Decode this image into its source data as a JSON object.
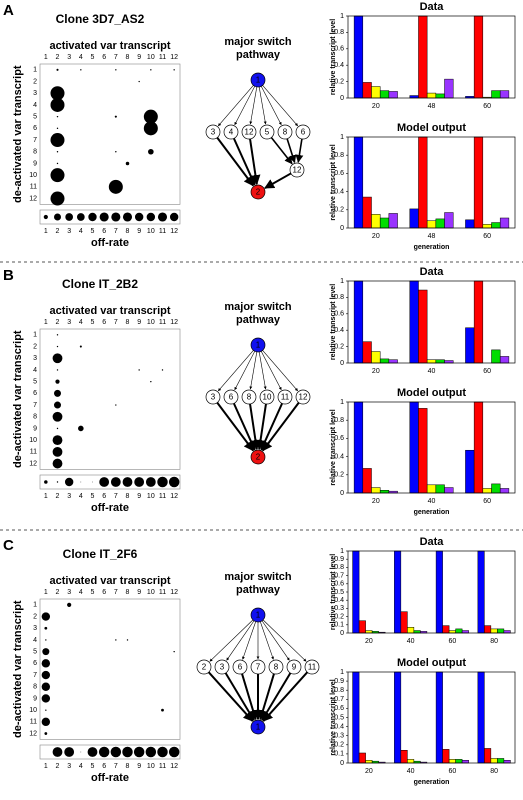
{
  "panels": [
    {
      "label": "A",
      "title": "Clone 3D7_AS2",
      "pathway": {
        "title_lines": [
          "major switch",
          "pathway"
        ],
        "source": "1",
        "intermediates": [
          "3",
          "4",
          "12",
          "5",
          "8",
          "6"
        ],
        "relay": [
          "12"
        ],
        "target": "2",
        "target_color": "#ee1111"
      }
    },
    {
      "label": "B",
      "title": "Clone IT_2B2",
      "pathway": {
        "title_lines": [
          "major switch",
          "pathway"
        ],
        "source": "1",
        "intermediates": [
          "3",
          "6",
          "8",
          "10",
          "11",
          "12"
        ],
        "target": "2",
        "target_color": "#ee1111"
      }
    },
    {
      "label": "C",
      "title": "Clone IT_2F6",
      "pathway": {
        "title_lines": [
          "major switch",
          "pathway"
        ],
        "source": "1",
        "intermediates": [
          "2",
          "3",
          "6",
          "7",
          "8",
          "9",
          "11"
        ],
        "target": "1",
        "target_color": "#1111ee"
      }
    }
  ],
  "chart_data": [
    {
      "type": "bubble-matrix",
      "title": "activated var transcript",
      "y_label": "de-activated var transcript",
      "categories": [
        "1",
        "2",
        "3",
        "4",
        "5",
        "6",
        "7",
        "8",
        "9",
        "10",
        "11",
        "12"
      ],
      "values": [
        [
          0,
          0.15,
          0,
          0.1,
          0,
          0,
          0.1,
          0,
          0,
          0.1,
          0,
          0.1
        ],
        [
          0,
          0,
          0,
          0,
          0,
          0,
          0,
          0,
          0.1,
          0,
          0,
          0
        ],
        [
          0,
          1,
          0,
          0,
          0,
          0,
          0,
          0,
          0,
          0,
          0,
          0
        ],
        [
          0,
          1,
          0,
          0,
          0,
          0,
          0,
          0,
          0,
          0,
          0,
          0
        ],
        [
          0,
          0.1,
          0,
          0,
          0,
          0,
          0.15,
          0,
          0,
          1,
          0,
          0
        ],
        [
          0,
          0.1,
          0,
          0,
          0,
          0,
          0,
          0,
          0,
          1,
          0,
          0
        ],
        [
          0,
          1,
          0,
          0,
          0,
          0,
          0,
          0,
          0,
          0,
          0,
          0
        ],
        [
          0,
          0.1,
          0,
          0,
          0,
          0,
          0.1,
          0,
          0,
          0.4,
          0,
          0
        ],
        [
          0,
          0.1,
          0,
          0,
          0,
          0,
          0,
          0.25,
          0,
          0,
          0,
          0
        ],
        [
          0,
          1,
          0,
          0,
          0,
          0,
          0,
          0,
          0,
          0,
          0,
          0
        ],
        [
          0,
          0,
          0,
          0,
          0,
          0,
          1,
          0,
          0,
          0,
          0,
          0
        ],
        [
          0,
          1,
          0,
          0,
          0,
          0,
          0,
          0,
          0,
          0,
          0,
          0
        ]
      ],
      "off_rate_label": "off-rate",
      "off_rate": [
        0.3,
        0.5,
        0.55,
        0.55,
        0.6,
        0.65,
        0.65,
        0.65,
        0.6,
        0.6,
        0.65,
        0.6
      ]
    },
    {
      "type": "bar",
      "title": "Data",
      "y_label": "relative transcript level",
      "categories": [
        "20",
        "48",
        "60"
      ],
      "series": [
        {
          "color": "#0000ff",
          "values": [
            1,
            0.03,
            0.02
          ]
        },
        {
          "color": "#ff0000",
          "values": [
            0.19,
            1,
            1
          ]
        },
        {
          "color": "#ffff00",
          "values": [
            0.14,
            0.06,
            0.01
          ]
        },
        {
          "color": "#00dd00",
          "values": [
            0.09,
            0.05,
            0.09
          ]
        },
        {
          "color": "#9933ff",
          "values": [
            0.08,
            0.23,
            0.09
          ]
        }
      ],
      "ylim": [
        0,
        1
      ],
      "yticks": [
        0,
        0.2,
        0.4,
        0.6,
        0.8,
        1
      ]
    },
    {
      "type": "bar",
      "title": "Model output",
      "y_label": "relative transcript level",
      "x_label": "generation",
      "categories": [
        "20",
        "48",
        "60"
      ],
      "series": [
        {
          "color": "#0000ff",
          "values": [
            1,
            0.21,
            0.09
          ]
        },
        {
          "color": "#ff0000",
          "values": [
            0.34,
            1,
            1
          ]
        },
        {
          "color": "#ffff00",
          "values": [
            0.15,
            0.08,
            0.04
          ]
        },
        {
          "color": "#00dd00",
          "values": [
            0.11,
            0.1,
            0.06
          ]
        },
        {
          "color": "#9933ff",
          "values": [
            0.16,
            0.17,
            0.11
          ]
        }
      ],
      "ylim": [
        0,
        1
      ],
      "yticks": [
        0,
        0.2,
        0.4,
        0.6,
        0.8,
        1
      ]
    },
    {
      "type": "bubble-matrix",
      "title": "activated var transcript",
      "y_label": "de-activated var transcript",
      "categories": [
        "1",
        "2",
        "3",
        "4",
        "5",
        "6",
        "7",
        "8",
        "9",
        "10",
        "11",
        "12"
      ],
      "values": [
        [
          0,
          0.1,
          0,
          0,
          0,
          0,
          0,
          0,
          0,
          0,
          0,
          0
        ],
        [
          0,
          0.1,
          0,
          0.15,
          0,
          0,
          0,
          0,
          0,
          0,
          0,
          0
        ],
        [
          0,
          0.7,
          0,
          0,
          0,
          0,
          0,
          0,
          0,
          0,
          0,
          0
        ],
        [
          0,
          0.1,
          0,
          0,
          0,
          0,
          0,
          0,
          0.1,
          0,
          0.1,
          0
        ],
        [
          0,
          0.3,
          0,
          0,
          0,
          0,
          0,
          0,
          0,
          0.1,
          0,
          0
        ],
        [
          0,
          0.5,
          0,
          0,
          0,
          0,
          0,
          0,
          0,
          0,
          0,
          0
        ],
        [
          0,
          0.5,
          0,
          0,
          0,
          0,
          0.1,
          0,
          0,
          0,
          0,
          0
        ],
        [
          0,
          0.7,
          0,
          0,
          0,
          0,
          0,
          0,
          0,
          0,
          0,
          0
        ],
        [
          0,
          0.1,
          0,
          0.4,
          0,
          0,
          0,
          0,
          0,
          0,
          0,
          0
        ],
        [
          0,
          0.7,
          0,
          0,
          0,
          0,
          0,
          0,
          0,
          0,
          0,
          0
        ],
        [
          0,
          0.7,
          0,
          0,
          0,
          0,
          0,
          0,
          0,
          0,
          0,
          0
        ],
        [
          0,
          0.7,
          0,
          0,
          0,
          0,
          0,
          0,
          0,
          0,
          0,
          0
        ]
      ],
      "off_rate_label": "off-rate",
      "off_rate": [
        0.25,
        0.1,
        0.6,
        0.05,
        0.05,
        0.7,
        0.7,
        0.7,
        0.7,
        0.7,
        0.75,
        0.75
      ]
    },
    {
      "type": "bar",
      "title": "Data",
      "y_label": "relative transcript level",
      "categories": [
        "20",
        "40",
        "60"
      ],
      "series": [
        {
          "color": "#0000ff",
          "values": [
            1,
            1,
            0.43
          ]
        },
        {
          "color": "#ff0000",
          "values": [
            0.26,
            0.89,
            1
          ]
        },
        {
          "color": "#ffff00",
          "values": [
            0.14,
            0.04,
            0
          ]
        },
        {
          "color": "#00dd00",
          "values": [
            0.05,
            0.04,
            0.16
          ]
        },
        {
          "color": "#9933ff",
          "values": [
            0.04,
            0.03,
            0.08
          ]
        }
      ],
      "ylim": [
        0,
        1
      ],
      "yticks": [
        0,
        0.2,
        0.4,
        0.6,
        0.8,
        1
      ]
    },
    {
      "type": "bar",
      "title": "Model output",
      "y_label": "relative transcript level",
      "x_label": "generation",
      "categories": [
        "20",
        "40",
        "60"
      ],
      "series": [
        {
          "color": "#0000ff",
          "values": [
            1,
            1,
            0.47
          ]
        },
        {
          "color": "#ff0000",
          "values": [
            0.27,
            0.93,
            1
          ]
        },
        {
          "color": "#ffff00",
          "values": [
            0.06,
            0.09,
            0.05
          ]
        },
        {
          "color": "#00dd00",
          "values": [
            0.03,
            0.09,
            0.1
          ]
        },
        {
          "color": "#9933ff",
          "values": [
            0.02,
            0.06,
            0.05
          ]
        }
      ],
      "ylim": [
        0,
        1
      ],
      "yticks": [
        0,
        0.2,
        0.4,
        0.6,
        0.8,
        1
      ]
    },
    {
      "type": "bubble-matrix",
      "title": "activated var transcript",
      "y_label": "de-activated var transcript",
      "categories": [
        "1",
        "2",
        "3",
        "4",
        "5",
        "6",
        "7",
        "8",
        "9",
        "10",
        "11",
        "12"
      ],
      "values": [
        [
          0,
          0,
          0.3,
          0,
          0,
          0,
          0,
          0,
          0,
          0,
          0,
          0
        ],
        [
          0.6,
          0,
          0,
          0,
          0,
          0,
          0,
          0,
          0,
          0,
          0,
          0
        ],
        [
          0.2,
          0,
          0,
          0,
          0,
          0,
          0,
          0,
          0,
          0,
          0,
          0
        ],
        [
          0.1,
          0,
          0,
          0,
          0,
          0,
          0.1,
          0.1,
          0,
          0,
          0,
          0
        ],
        [
          0.5,
          0,
          0,
          0,
          0,
          0,
          0,
          0,
          0,
          0,
          0,
          0.1
        ],
        [
          0.6,
          0,
          0,
          0,
          0,
          0,
          0,
          0,
          0,
          0,
          0,
          0
        ],
        [
          0.6,
          0,
          0,
          0,
          0,
          0,
          0,
          0,
          0,
          0,
          0,
          0
        ],
        [
          0.6,
          0,
          0,
          0,
          0,
          0,
          0,
          0,
          0,
          0,
          0,
          0
        ],
        [
          0.6,
          0,
          0,
          0,
          0,
          0,
          0,
          0,
          0,
          0,
          0,
          0
        ],
        [
          0.1,
          0,
          0,
          0,
          0,
          0,
          0,
          0,
          0,
          0,
          0.2,
          0
        ],
        [
          0.6,
          0,
          0,
          0,
          0,
          0,
          0,
          0,
          0,
          0,
          0,
          0
        ],
        [
          0.2,
          0,
          0,
          0,
          0,
          0,
          0,
          0,
          0,
          0,
          0,
          0
        ]
      ],
      "off_rate_label": "off-rate",
      "off_rate": [
        0,
        0.7,
        0.7,
        0.05,
        0.7,
        0.75,
        0.75,
        0.75,
        0.75,
        0.75,
        0.75,
        0.75
      ]
    },
    {
      "type": "bar",
      "title": "Data",
      "y_label": "relative transcript level",
      "categories": [
        "20",
        "40",
        "60",
        "80"
      ],
      "series": [
        {
          "color": "#0000ff",
          "values": [
            1,
            1,
            1,
            1
          ]
        },
        {
          "color": "#ff0000",
          "values": [
            0.15,
            0.26,
            0.09,
            0.09
          ]
        },
        {
          "color": "#ffff00",
          "values": [
            0.03,
            0.07,
            0.03,
            0.05
          ]
        },
        {
          "color": "#00dd00",
          "values": [
            0.02,
            0.03,
            0.05,
            0.05
          ]
        },
        {
          "color": "#9933ff",
          "values": [
            0.01,
            0.02,
            0.03,
            0.03
          ]
        }
      ],
      "ylim": [
        0,
        1
      ],
      "yticks": [
        0,
        0.1,
        0.2,
        0.3,
        0.4,
        0.5,
        0.6,
        0.7,
        0.8,
        0.9,
        1
      ]
    },
    {
      "type": "bar",
      "title": "Model output",
      "y_label": "relative transcript level",
      "x_label": "generation",
      "categories": [
        "20",
        "40",
        "60",
        "80"
      ],
      "series": [
        {
          "color": "#0000ff",
          "values": [
            1,
            1,
            1,
            1
          ]
        },
        {
          "color": "#ff0000",
          "values": [
            0.11,
            0.14,
            0.15,
            0.16
          ]
        },
        {
          "color": "#ffff00",
          "values": [
            0.03,
            0.04,
            0.04,
            0.05
          ]
        },
        {
          "color": "#00dd00",
          "values": [
            0.02,
            0.02,
            0.04,
            0.05
          ]
        },
        {
          "color": "#9933ff",
          "values": [
            0.01,
            0.01,
            0.03,
            0.03
          ]
        }
      ],
      "ylim": [
        0,
        1
      ],
      "yticks": [
        0,
        0.1,
        0.2,
        0.3,
        0.4,
        0.5,
        0.6,
        0.7,
        0.8,
        0.9,
        1
      ]
    }
  ]
}
